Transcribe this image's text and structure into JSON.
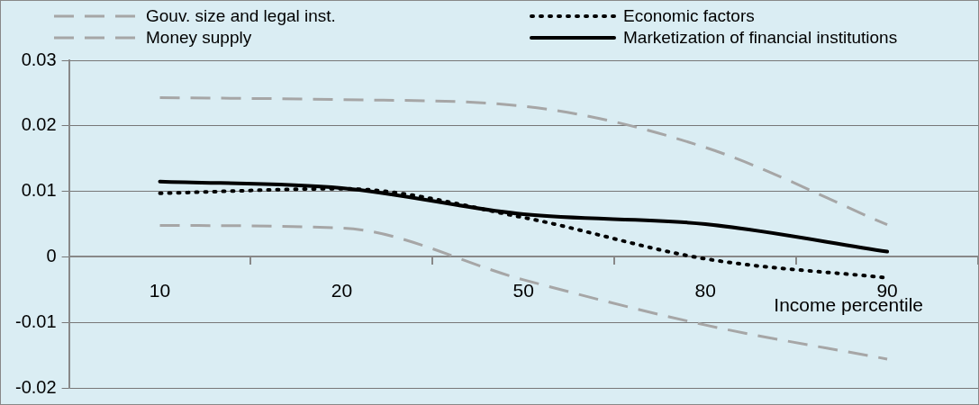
{
  "chart_data": {
    "type": "line",
    "xlabel": "Income percentile",
    "categories": [
      "10",
      "20",
      "50",
      "80",
      "90"
    ],
    "series": [
      {
        "name": "Gouv. size and legal inst.",
        "color": "#a6a6a6",
        "line_style": "dashed",
        "values": [
          0.0243,
          0.024,
          0.023,
          0.0167,
          0.0049
        ]
      },
      {
        "name": "Economic factors",
        "color": "#000000",
        "line_style": "dotted",
        "values": [
          0.0097,
          0.0104,
          0.006,
          -0.0003,
          -0.0032
        ]
      },
      {
        "name": "Money supply",
        "color": "#a6a6a6",
        "line_style": "dashed",
        "values": [
          0.0048,
          0.0044,
          -0.0035,
          -0.0104,
          -0.0156
        ]
      },
      {
        "name": "Marketization of financial institutions",
        "color": "#000000",
        "line_style": "solid",
        "values": [
          0.0115,
          0.0105,
          0.0065,
          0.005,
          0.0008
        ]
      }
    ],
    "ylim": [
      -0.02,
      0.03
    ],
    "yticks": [
      -0.02,
      -0.01,
      0,
      0.01,
      0.02,
      0.03
    ],
    "grid": "y",
    "legend": "top",
    "marker": "none"
  }
}
